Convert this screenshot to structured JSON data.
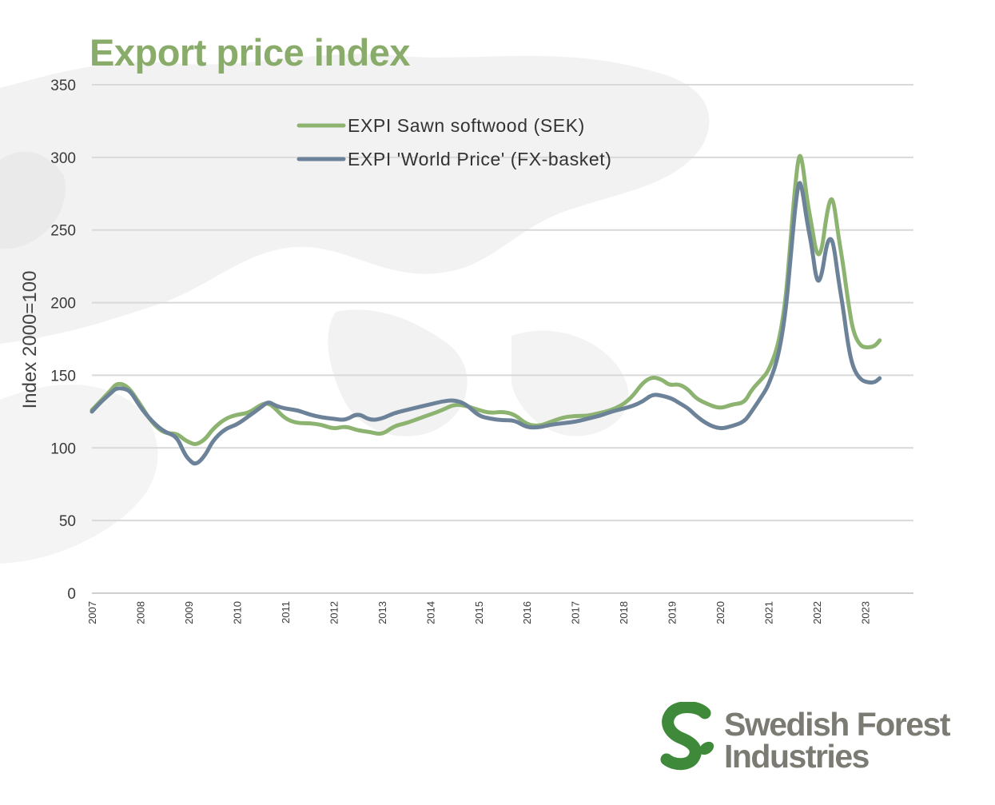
{
  "title": "Export price index",
  "colors": {
    "title": "#8aac6a",
    "sawn": "#8db371",
    "world": "#6c8298",
    "grid": "#d9d9d9",
    "logo_green": "#3e8a3a",
    "logo_text": "#7b7b73"
  },
  "logo": {
    "line1": "Swedish Forest",
    "line2": "Industries",
    "icon": "s-leaf-icon"
  },
  "chart_data": {
    "type": "line",
    "title": "Export price index",
    "ylabel": "Index 2000=100",
    "xlabel": "",
    "ylim": [
      0,
      350
    ],
    "yticks": [
      0,
      50,
      100,
      150,
      200,
      250,
      300,
      350
    ],
    "xlim": [
      2007,
      2024
    ],
    "xticks": [
      "2007",
      "2008",
      "2009",
      "2010",
      "2011",
      "2012",
      "2013",
      "2014",
      "2015",
      "2016",
      "2017",
      "2018",
      "2019",
      "2020",
      "2021",
      "2022",
      "2023"
    ],
    "grid": true,
    "legend_position": "top-center",
    "series": [
      {
        "name": "EXPI Sawn softwood (SEK)",
        "color": "#8db371",
        "points": [
          [
            2007.0,
            126
          ],
          [
            2007.2,
            133
          ],
          [
            2007.4,
            140
          ],
          [
            2007.5,
            144
          ],
          [
            2007.65,
            144
          ],
          [
            2007.8,
            140
          ],
          [
            2008.0,
            130
          ],
          [
            2008.25,
            117
          ],
          [
            2008.5,
            110
          ],
          [
            2008.75,
            110
          ],
          [
            2008.9,
            106
          ],
          [
            2009.0,
            104
          ],
          [
            2009.15,
            102
          ],
          [
            2009.35,
            106
          ],
          [
            2009.5,
            113
          ],
          [
            2009.75,
            120
          ],
          [
            2010.0,
            123
          ],
          [
            2010.25,
            124
          ],
          [
            2010.5,
            130
          ],
          [
            2010.65,
            131
          ],
          [
            2010.8,
            127
          ],
          [
            2011.0,
            120
          ],
          [
            2011.25,
            117
          ],
          [
            2011.5,
            117
          ],
          [
            2011.75,
            116
          ],
          [
            2012.0,
            113
          ],
          [
            2012.25,
            115
          ],
          [
            2012.5,
            112
          ],
          [
            2012.75,
            111
          ],
          [
            2013.0,
            109
          ],
          [
            2013.25,
            115
          ],
          [
            2013.5,
            117
          ],
          [
            2013.75,
            120
          ],
          [
            2014.0,
            123
          ],
          [
            2014.25,
            126
          ],
          [
            2014.5,
            130
          ],
          [
            2014.75,
            129
          ],
          [
            2015.0,
            126
          ],
          [
            2015.25,
            124
          ],
          [
            2015.5,
            125
          ],
          [
            2015.75,
            123
          ],
          [
            2016.0,
            116
          ],
          [
            2016.25,
            115
          ],
          [
            2016.5,
            118
          ],
          [
            2016.75,
            121
          ],
          [
            2017.0,
            122
          ],
          [
            2017.25,
            122
          ],
          [
            2017.5,
            124
          ],
          [
            2017.75,
            126
          ],
          [
            2018.0,
            130
          ],
          [
            2018.2,
            136
          ],
          [
            2018.4,
            145
          ],
          [
            2018.6,
            149
          ],
          [
            2018.8,
            147
          ],
          [
            2018.95,
            143
          ],
          [
            2019.15,
            144
          ],
          [
            2019.35,
            140
          ],
          [
            2019.5,
            134
          ],
          [
            2019.75,
            130
          ],
          [
            2020.0,
            127
          ],
          [
            2020.25,
            130
          ],
          [
            2020.5,
            131
          ],
          [
            2020.65,
            140
          ],
          [
            2020.85,
            147
          ],
          [
            2021.0,
            153
          ],
          [
            2021.2,
            170
          ],
          [
            2021.35,
            200
          ],
          [
            2021.45,
            240
          ],
          [
            2021.55,
            280
          ],
          [
            2021.63,
            303
          ],
          [
            2021.7,
            298
          ],
          [
            2021.8,
            270
          ],
          [
            2021.9,
            252
          ],
          [
            2022.0,
            232
          ],
          [
            2022.1,
            235
          ],
          [
            2022.2,
            260
          ],
          [
            2022.28,
            272
          ],
          [
            2022.35,
            270
          ],
          [
            2022.45,
            245
          ],
          [
            2022.55,
            225
          ],
          [
            2022.65,
            200
          ],
          [
            2022.75,
            180
          ],
          [
            2022.9,
            170
          ],
          [
            2023.05,
            169
          ],
          [
            2023.2,
            170
          ],
          [
            2023.3,
            174
          ]
        ]
      },
      {
        "name": "EXPI 'World Price' (FX-basket)",
        "color": "#6c8298",
        "points": [
          [
            2007.0,
            125
          ],
          [
            2007.2,
            132
          ],
          [
            2007.4,
            138
          ],
          [
            2007.5,
            141
          ],
          [
            2007.65,
            141
          ],
          [
            2007.8,
            139
          ],
          [
            2008.0,
            128
          ],
          [
            2008.25,
            118
          ],
          [
            2008.5,
            111
          ],
          [
            2008.75,
            108
          ],
          [
            2008.9,
            97
          ],
          [
            2009.0,
            92
          ],
          [
            2009.15,
            88
          ],
          [
            2009.35,
            95
          ],
          [
            2009.5,
            105
          ],
          [
            2009.75,
            113
          ],
          [
            2010.0,
            116
          ],
          [
            2010.25,
            122
          ],
          [
            2010.5,
            128
          ],
          [
            2010.65,
            132
          ],
          [
            2010.8,
            129
          ],
          [
            2011.0,
            127
          ],
          [
            2011.25,
            126
          ],
          [
            2011.5,
            123
          ],
          [
            2011.75,
            121
          ],
          [
            2012.0,
            120
          ],
          [
            2012.25,
            119
          ],
          [
            2012.5,
            124
          ],
          [
            2012.75,
            119
          ],
          [
            2013.0,
            120
          ],
          [
            2013.25,
            124
          ],
          [
            2013.5,
            126
          ],
          [
            2013.75,
            128
          ],
          [
            2014.0,
            130
          ],
          [
            2014.25,
            132
          ],
          [
            2014.5,
            133
          ],
          [
            2014.75,
            130
          ],
          [
            2015.0,
            122
          ],
          [
            2015.25,
            120
          ],
          [
            2015.5,
            119
          ],
          [
            2015.75,
            119
          ],
          [
            2016.0,
            114
          ],
          [
            2016.25,
            114
          ],
          [
            2016.5,
            116
          ],
          [
            2016.75,
            117
          ],
          [
            2017.0,
            118
          ],
          [
            2017.25,
            120
          ],
          [
            2017.5,
            122
          ],
          [
            2017.75,
            125
          ],
          [
            2018.0,
            127
          ],
          [
            2018.2,
            129
          ],
          [
            2018.4,
            132
          ],
          [
            2018.6,
            137
          ],
          [
            2018.8,
            136
          ],
          [
            2019.0,
            134
          ],
          [
            2019.15,
            131
          ],
          [
            2019.35,
            127
          ],
          [
            2019.5,
            122
          ],
          [
            2019.75,
            116
          ],
          [
            2020.0,
            113
          ],
          [
            2020.25,
            115
          ],
          [
            2020.5,
            118
          ],
          [
            2020.65,
            125
          ],
          [
            2020.85,
            135
          ],
          [
            2021.0,
            143
          ],
          [
            2021.2,
            162
          ],
          [
            2021.35,
            192
          ],
          [
            2021.45,
            228
          ],
          [
            2021.55,
            265
          ],
          [
            2021.63,
            285
          ],
          [
            2021.7,
            278
          ],
          [
            2021.8,
            255
          ],
          [
            2021.9,
            238
          ],
          [
            2022.0,
            213
          ],
          [
            2022.1,
            218
          ],
          [
            2022.2,
            240
          ],
          [
            2022.28,
            245
          ],
          [
            2022.35,
            240
          ],
          [
            2022.45,
            215
          ],
          [
            2022.55,
            195
          ],
          [
            2022.65,
            170
          ],
          [
            2022.75,
            155
          ],
          [
            2022.9,
            147
          ],
          [
            2023.05,
            145
          ],
          [
            2023.2,
            145
          ],
          [
            2023.3,
            148
          ]
        ]
      }
    ]
  }
}
